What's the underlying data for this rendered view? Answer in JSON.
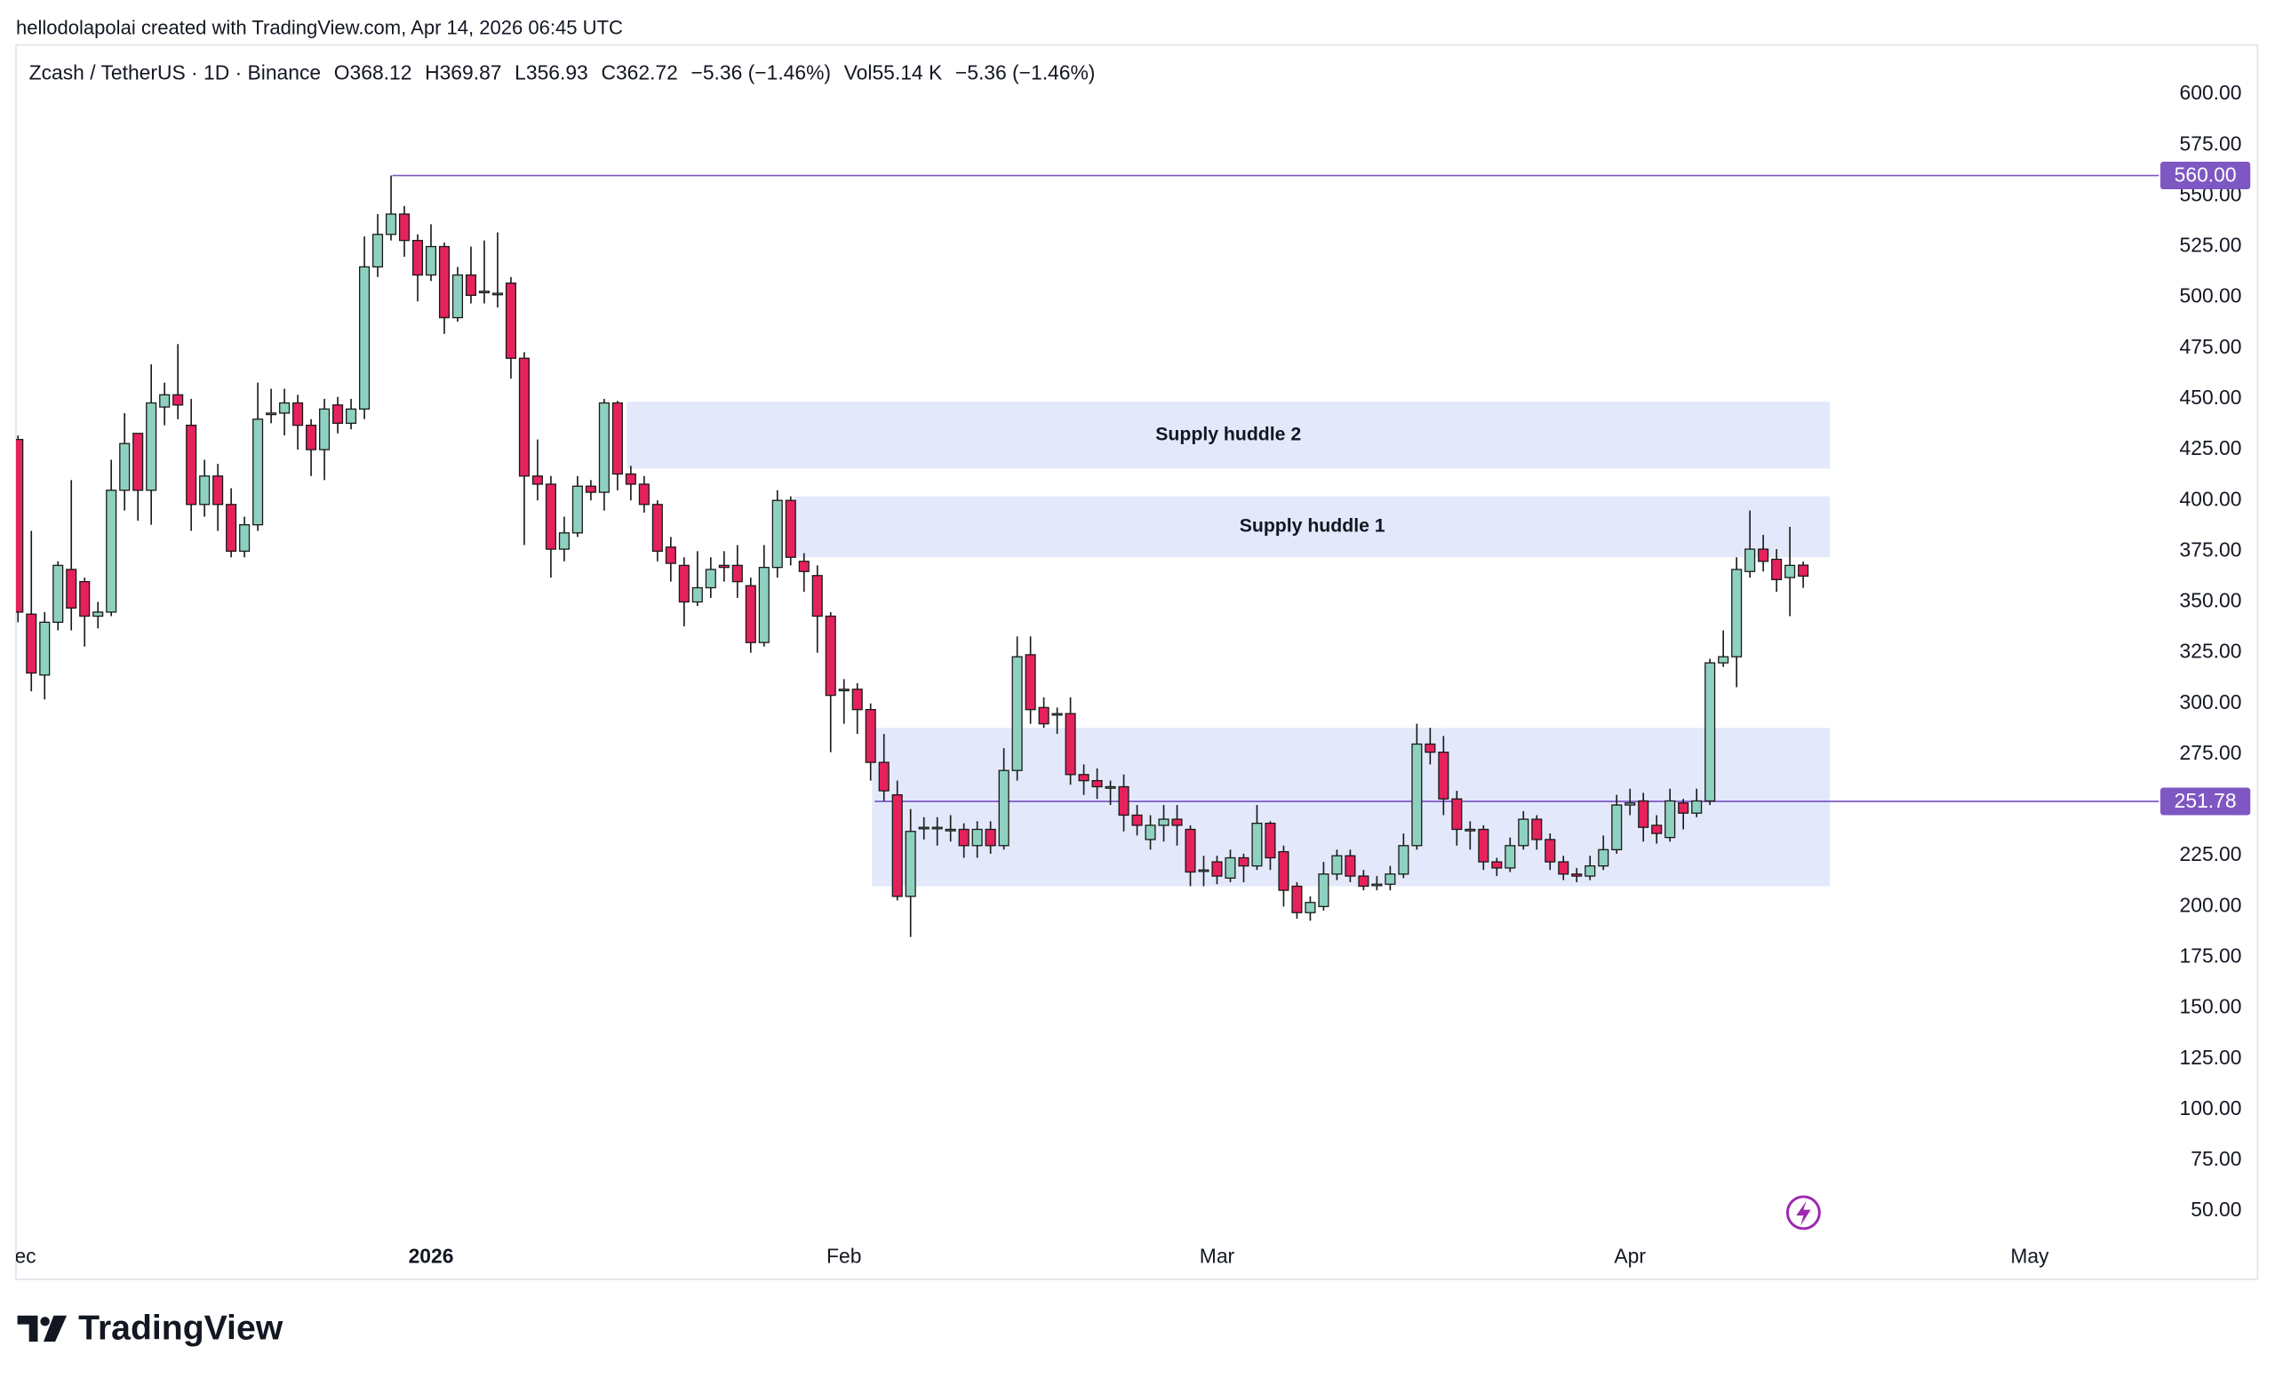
{
  "attribution": "hellodolapolai created with TradingView.com, Apr 14, 2026 06:45 UTC",
  "logo": "TradingView",
  "chart_data": {
    "type": "candlestick",
    "title": "Zcash / TetherUS · 1D · Binance",
    "stats": [
      "O368.12",
      "H369.87",
      "L356.93",
      "C362.72",
      "−5.36 (−1.46%)",
      "Vol55.14 K",
      "−5.36 (−1.46%)"
    ],
    "up_color": "#8ed1c0",
    "down_color": "#e5225b",
    "outline_color": "#1a1a1a",
    "xlim": [
      0,
      160.7
    ],
    "xticks": [
      {
        "value": 0,
        "label": "Dec"
      },
      {
        "value": 31,
        "label": "2026"
      },
      {
        "value": 62,
        "label": "Feb"
      },
      {
        "value": 90,
        "label": "Mar"
      },
      {
        "value": 121,
        "label": "Apr"
      },
      {
        "value": 151,
        "label": "May"
      }
    ],
    "ylim": [
      16.4,
      625
    ],
    "yticks": [
      {
        "value": 50,
        "label": "50.00"
      },
      {
        "value": 75,
        "label": "75.00"
      },
      {
        "value": 100,
        "label": "100.00"
      },
      {
        "value": 125,
        "label": "125.00"
      },
      {
        "value": 150,
        "label": "150.00"
      },
      {
        "value": 175,
        "label": "175.00"
      },
      {
        "value": 200,
        "label": "200.00"
      },
      {
        "value": 225,
        "label": "225.00"
      },
      {
        "value": 250,
        "label": "250.00"
      },
      {
        "value": 275,
        "label": "275.00"
      },
      {
        "value": 300,
        "label": "300.00"
      },
      {
        "value": 325,
        "label": "325.00"
      },
      {
        "value": 350,
        "label": "350.00"
      },
      {
        "value": 375,
        "label": "375.00"
      },
      {
        "value": 400,
        "label": "400.00"
      },
      {
        "value": 425,
        "label": "425.00"
      },
      {
        "value": 450,
        "label": "450.00"
      },
      {
        "value": 475,
        "label": "475.00"
      },
      {
        "value": 500,
        "label": "500.00"
      },
      {
        "value": 525,
        "label": "525.00"
      },
      {
        "value": 550,
        "label": "550.00"
      },
      {
        "value": 575,
        "label": "575.00"
      },
      {
        "value": 600,
        "label": "600.00"
      }
    ],
    "zone_color": "#e3e9fb",
    "zones": [
      {
        "label": "Supply huddle 2",
        "x0": 45.7,
        "x1": 136,
        "y0": 415.7,
        "y1": 448.6
      },
      {
        "label": "Supply huddle 1",
        "x0": 58.3,
        "x1": 136,
        "y0": 372,
        "y1": 402
      },
      {
        "x0": 64.1,
        "x1": 136,
        "y0": 210,
        "y1": 288
      }
    ],
    "level_color": "#7e57c2",
    "levels": [
      {
        "value": 560,
        "label": "560.00",
        "x0": 28.1
      },
      {
        "value": 251.78,
        "label": "251.78",
        "x0": 64.3
      }
    ],
    "ohlc": [
      [
        430,
        432,
        340,
        345
      ],
      [
        344,
        385,
        306,
        315
      ],
      [
        314,
        345,
        302,
        340
      ],
      [
        340,
        370,
        336,
        368
      ],
      [
        366,
        410,
        336,
        347
      ],
      [
        360,
        362,
        328,
        343
      ],
      [
        343,
        350,
        337,
        345
      ],
      [
        345,
        420,
        343,
        405
      ],
      [
        405,
        443,
        395,
        428
      ],
      [
        433,
        433,
        390,
        405
      ],
      [
        405,
        467,
        388,
        448
      ],
      [
        446,
        458,
        437,
        452
      ],
      [
        452,
        477,
        440,
        447
      ],
      [
        437,
        450,
        385,
        398
      ],
      [
        398,
        420,
        392,
        412
      ],
      [
        412,
        418,
        385,
        398
      ],
      [
        398,
        406,
        372,
        375
      ],
      [
        375,
        392,
        372,
        388
      ],
      [
        388,
        458,
        385,
        440
      ],
      [
        443,
        455,
        438,
        443
      ],
      [
        443,
        455,
        432,
        448
      ],
      [
        448,
        452,
        425,
        437
      ],
      [
        437,
        440,
        412,
        425
      ],
      [
        425,
        450,
        410,
        445
      ],
      [
        447,
        451,
        433,
        438
      ],
      [
        438,
        450,
        435,
        445
      ],
      [
        445,
        530,
        440,
        515
      ],
      [
        515,
        541,
        510,
        531
      ],
      [
        531,
        560,
        528,
        541
      ],
      [
        541,
        545,
        520,
        528
      ],
      [
        528,
        531,
        498,
        511
      ],
      [
        511,
        536,
        508,
        525
      ],
      [
        525,
        527,
        482,
        490
      ],
      [
        490,
        515,
        488,
        511
      ],
      [
        511,
        525,
        497,
        501
      ],
      [
        503,
        528,
        497,
        503
      ],
      [
        502,
        532,
        495,
        502
      ],
      [
        507,
        510,
        460,
        470
      ],
      [
        470,
        473,
        378,
        412
      ],
      [
        412,
        430,
        400,
        408
      ],
      [
        408,
        412,
        362,
        376
      ],
      [
        376,
        392,
        370,
        384
      ],
      [
        384,
        412,
        382,
        407
      ],
      [
        407,
        410,
        400,
        404
      ],
      [
        404,
        450,
        395,
        448
      ],
      [
        448,
        449,
        405,
        413
      ],
      [
        413,
        417,
        400,
        408
      ],
      [
        408,
        412,
        394,
        398
      ],
      [
        398,
        400,
        370,
        375
      ],
      [
        377,
        382,
        360,
        369
      ],
      [
        368,
        372,
        338,
        350
      ],
      [
        350,
        375,
        348,
        357
      ],
      [
        357,
        372,
        352,
        366
      ],
      [
        368,
        375,
        360,
        367
      ],
      [
        368,
        378,
        352,
        360
      ],
      [
        358,
        362,
        325,
        330
      ],
      [
        330,
        378,
        328,
        367
      ],
      [
        367,
        405,
        362,
        400
      ],
      [
        400,
        402,
        368,
        372
      ],
      [
        370,
        374,
        355,
        365
      ],
      [
        363,
        368,
        325,
        343
      ],
      [
        343,
        345,
        276,
        304
      ],
      [
        307,
        312,
        290,
        307
      ],
      [
        307,
        310,
        285,
        297
      ],
      [
        297,
        300,
        262,
        271
      ],
      [
        271,
        285,
        252,
        257
      ],
      [
        255,
        262,
        203,
        205
      ],
      [
        205,
        248,
        185,
        237
      ],
      [
        239,
        244,
        233,
        239
      ],
      [
        239,
        244,
        230,
        239
      ],
      [
        238,
        245,
        232,
        238
      ],
      [
        238,
        241,
        224,
        230
      ],
      [
        230,
        242,
        224,
        238
      ],
      [
        238,
        242,
        226,
        230
      ],
      [
        230,
        278,
        228,
        267
      ],
      [
        267,
        333,
        262,
        323
      ],
      [
        324,
        333,
        290,
        297
      ],
      [
        298,
        303,
        288,
        290
      ],
      [
        295,
        298,
        285,
        295
      ],
      [
        295,
        303,
        260,
        265
      ],
      [
        265,
        270,
        255,
        262
      ],
      [
        262,
        268,
        253,
        259
      ],
      [
        259,
        262,
        250,
        259
      ],
      [
        259,
        265,
        237,
        245
      ],
      [
        245,
        250,
        235,
        240
      ],
      [
        233,
        245,
        228,
        240
      ],
      [
        240,
        250,
        232,
        243
      ],
      [
        243,
        250,
        230,
        240
      ],
      [
        238,
        240,
        210,
        217
      ],
      [
        218,
        225,
        210,
        218
      ],
      [
        222,
        225,
        211,
        215
      ],
      [
        214,
        228,
        212,
        224
      ],
      [
        224,
        226,
        212,
        220
      ],
      [
        220,
        250,
        218,
        241
      ],
      [
        241,
        242,
        218,
        224
      ],
      [
        227,
        230,
        200,
        208
      ],
      [
        210,
        212,
        194,
        197
      ],
      [
        197,
        205,
        193,
        202
      ],
      [
        200,
        222,
        198,
        216
      ],
      [
        216,
        228,
        213,
        225
      ],
      [
        225,
        228,
        212,
        215
      ],
      [
        215,
        218,
        208,
        210
      ],
      [
        211,
        215,
        208,
        211
      ],
      [
        211,
        220,
        208,
        216
      ],
      [
        216,
        236,
        214,
        230
      ],
      [
        230,
        290,
        228,
        280
      ],
      [
        280,
        288,
        270,
        276
      ],
      [
        276,
        284,
        245,
        253
      ],
      [
        253,
        257,
        230,
        238
      ],
      [
        238,
        242,
        228,
        238
      ],
      [
        238,
        240,
        218,
        222
      ],
      [
        222,
        224,
        215,
        219
      ],
      [
        219,
        234,
        217,
        230
      ],
      [
        230,
        247,
        228,
        243
      ],
      [
        243,
        245,
        228,
        233
      ],
      [
        233,
        236,
        218,
        222
      ],
      [
        222,
        225,
        213,
        216
      ],
      [
        216,
        219,
        212,
        215
      ],
      [
        215,
        225,
        213,
        220
      ],
      [
        220,
        235,
        218,
        228
      ],
      [
        228,
        255,
        226,
        250
      ],
      [
        250,
        258,
        245,
        251
      ],
      [
        252,
        256,
        232,
        239
      ],
      [
        240,
        245,
        231,
        236
      ],
      [
        234,
        258,
        232,
        252
      ],
      [
        251,
        253,
        238,
        246
      ],
      [
        246,
        258,
        244,
        252
      ],
      [
        252,
        322,
        250,
        320
      ],
      [
        320,
        336,
        318,
        323
      ],
      [
        323,
        372,
        308,
        366
      ],
      [
        365,
        395,
        362,
        376
      ],
      [
        376,
        383,
        365,
        370
      ],
      [
        371,
        376,
        355,
        361
      ],
      [
        362,
        387,
        343,
        368
      ],
      [
        368.12,
        369.87,
        356.93,
        362.72
      ]
    ]
  }
}
